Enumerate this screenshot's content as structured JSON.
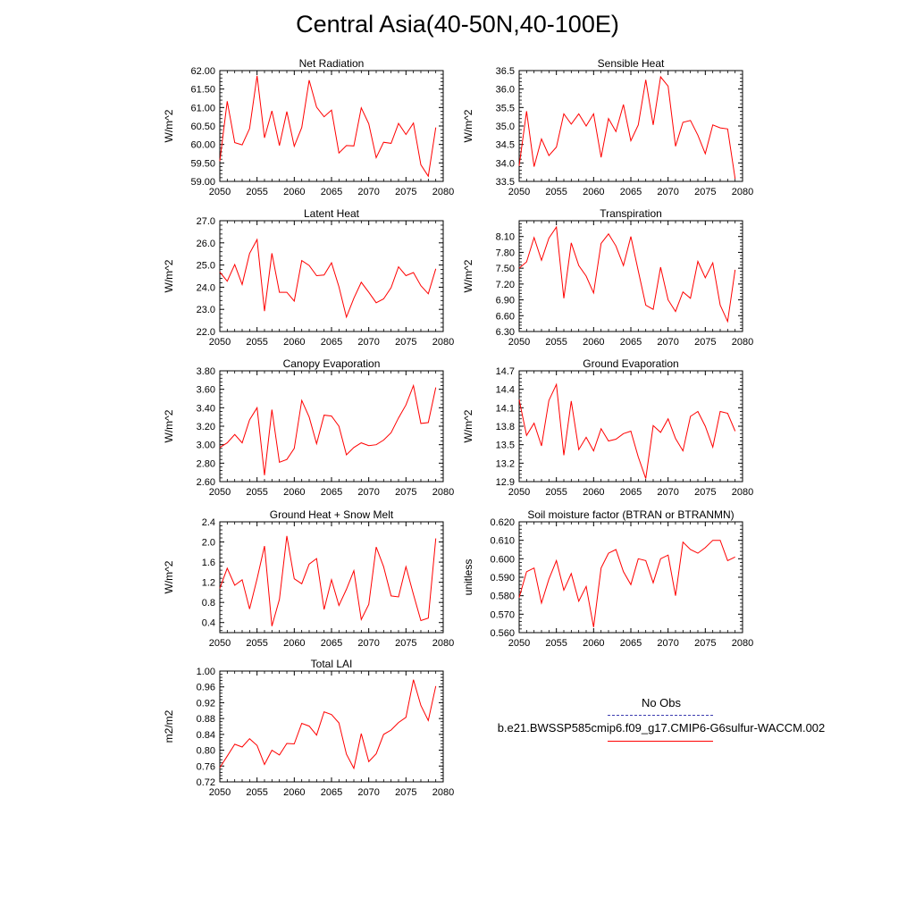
{
  "title": "Central Asia(40-50N,40-100E)",
  "legend": {
    "obs_label": "No Obs",
    "obs_color": "#3b3bb0",
    "model_label": "b.e21.BWSSP585cmip6.f09_g17.CMIP6-G6sulfur-WACCM.002",
    "model_color": "#ff0000"
  },
  "chart_data": [
    {
      "type": "line",
      "title": "Net Radiation",
      "ylabel": "W/m^2",
      "xlim": [
        2050,
        2080
      ],
      "ylim": [
        59.0,
        62.0
      ],
      "yticks": [
        "59.00",
        "59.50",
        "60.00",
        "60.50",
        "61.00",
        "61.50",
        "62.00"
      ],
      "xticks": [
        "2050",
        "2055",
        "2060",
        "2065",
        "2070",
        "2075",
        "2080"
      ],
      "series": [
        {
          "color": "#ff0000",
          "x": [
            2050,
            2051,
            2052,
            2053,
            2054,
            2055,
            2056,
            2057,
            2058,
            2059,
            2060,
            2061,
            2062,
            2063,
            2064,
            2065,
            2066,
            2067,
            2068,
            2069,
            2070,
            2071,
            2072,
            2073,
            2074,
            2075,
            2076,
            2077,
            2078,
            2079
          ],
          "values": [
            59.55,
            61.17,
            60.05,
            59.99,
            60.43,
            61.86,
            60.18,
            60.91,
            59.97,
            60.89,
            59.95,
            60.46,
            61.74,
            61.01,
            60.75,
            60.93,
            59.77,
            59.97,
            59.96,
            60.99,
            60.56,
            59.64,
            60.06,
            60.03,
            60.57,
            60.27,
            60.58,
            59.45,
            59.14,
            60.46
          ]
        }
      ]
    },
    {
      "type": "line",
      "title": "Sensible Heat",
      "ylabel": "W/m^2",
      "xlim": [
        2050,
        2080
      ],
      "ylim": [
        33.5,
        36.5
      ],
      "yticks": [
        "33.5",
        "34.0",
        "34.5",
        "35.0",
        "35.5",
        "36.0",
        "36.5"
      ],
      "xticks": [
        "2050",
        "2055",
        "2060",
        "2065",
        "2070",
        "2075",
        "2080"
      ],
      "series": [
        {
          "color": "#ff0000",
          "x": [
            2050,
            2051,
            2052,
            2053,
            2054,
            2055,
            2056,
            2057,
            2058,
            2059,
            2060,
            2061,
            2062,
            2063,
            2064,
            2065,
            2066,
            2067,
            2068,
            2069,
            2070,
            2071,
            2072,
            2073,
            2074,
            2075,
            2076,
            2077,
            2078,
            2079
          ],
          "values": [
            33.92,
            35.4,
            33.9,
            34.65,
            34.2,
            34.43,
            35.33,
            35.05,
            35.33,
            35.0,
            35.33,
            34.15,
            35.2,
            34.85,
            35.58,
            34.6,
            35.03,
            36.25,
            35.03,
            36.33,
            36.08,
            34.45,
            35.1,
            35.15,
            34.75,
            34.25,
            35.03,
            34.95,
            34.92,
            33.57
          ]
        }
      ]
    },
    {
      "type": "line",
      "title": "Latent Heat",
      "ylabel": "W/m^2",
      "xlim": [
        2050,
        2080
      ],
      "ylim": [
        22.0,
        27.0
      ],
      "yticks": [
        "22.0",
        "23.0",
        "24.0",
        "25.0",
        "26.0",
        "27.0"
      ],
      "xticks": [
        "2050",
        "2055",
        "2060",
        "2065",
        "2070",
        "2075",
        "2080"
      ],
      "series": [
        {
          "color": "#ff0000",
          "x": [
            2050,
            2051,
            2052,
            2053,
            2054,
            2055,
            2056,
            2057,
            2058,
            2059,
            2060,
            2061,
            2062,
            2063,
            2064,
            2065,
            2066,
            2067,
            2068,
            2069,
            2070,
            2071,
            2072,
            2073,
            2074,
            2075,
            2076,
            2077,
            2078,
            2079
          ],
          "values": [
            24.68,
            24.27,
            25.02,
            24.12,
            25.52,
            26.15,
            22.92,
            25.53,
            23.77,
            23.77,
            23.37,
            25.2,
            24.98,
            24.52,
            24.55,
            25.1,
            24.02,
            22.65,
            23.5,
            24.22,
            23.77,
            23.3,
            23.47,
            23.98,
            24.92,
            24.52,
            24.66,
            24.07,
            23.7,
            24.83
          ]
        }
      ]
    },
    {
      "type": "line",
      "title": "Transpiration",
      "ylabel": "W/m^2",
      "xlim": [
        2050,
        2080
      ],
      "ylim": [
        6.3,
        8.4
      ],
      "yticks": [
        "6.30",
        "6.60",
        "6.90",
        "7.20",
        "7.50",
        "7.80",
        "8.10"
      ],
      "xticks": [
        "2050",
        "2055",
        "2060",
        "2065",
        "2070",
        "2075",
        "2080"
      ],
      "series": [
        {
          "color": "#ff0000",
          "x": [
            2050,
            2051,
            2052,
            2053,
            2054,
            2055,
            2056,
            2057,
            2058,
            2059,
            2060,
            2061,
            2062,
            2063,
            2064,
            2065,
            2066,
            2067,
            2068,
            2069,
            2070,
            2071,
            2072,
            2073,
            2074,
            2075,
            2076,
            2077,
            2078,
            2079
          ],
          "values": [
            7.5,
            7.62,
            8.08,
            7.65,
            8.07,
            8.28,
            6.93,
            7.98,
            7.55,
            7.35,
            7.03,
            7.97,
            8.15,
            7.92,
            7.55,
            8.1,
            7.45,
            6.8,
            6.72,
            7.52,
            6.9,
            6.68,
            7.05,
            6.93,
            7.63,
            7.32,
            7.6,
            6.8,
            6.49,
            7.47
          ]
        }
      ]
    },
    {
      "type": "line",
      "title": "Canopy Evaporation",
      "ylabel": "W/m^2",
      "xlim": [
        2050,
        2080
      ],
      "ylim": [
        2.6,
        3.8
      ],
      "yticks": [
        "2.60",
        "2.80",
        "3.00",
        "3.20",
        "3.40",
        "3.60",
        "3.80"
      ],
      "xticks": [
        "2050",
        "2055",
        "2060",
        "2065",
        "2070",
        "2075",
        "2080"
      ],
      "series": [
        {
          "color": "#ff0000",
          "x": [
            2050,
            2051,
            2052,
            2053,
            2054,
            2055,
            2056,
            2057,
            2058,
            2059,
            2060,
            2061,
            2062,
            2063,
            2064,
            2065,
            2066,
            2067,
            2068,
            2069,
            2070,
            2071,
            2072,
            2073,
            2074,
            2075,
            2076,
            2077,
            2078,
            2079
          ],
          "values": [
            2.97,
            3.02,
            3.11,
            3.02,
            3.27,
            3.4,
            2.67,
            3.38,
            2.81,
            2.84,
            2.96,
            3.48,
            3.3,
            3.01,
            3.32,
            3.31,
            3.2,
            2.89,
            2.97,
            3.02,
            2.99,
            3.0,
            3.05,
            3.13,
            3.29,
            3.43,
            3.64,
            3.23,
            3.24,
            3.62
          ]
        }
      ]
    },
    {
      "type": "line",
      "title": "Ground Evaporation",
      "ylabel": "W/m^2",
      "xlim": [
        2050,
        2080
      ],
      "ylim": [
        12.9,
        14.7
      ],
      "yticks": [
        "12.9",
        "13.2",
        "13.5",
        "13.8",
        "14.1",
        "14.4",
        "14.7"
      ],
      "xticks": [
        "2050",
        "2055",
        "2060",
        "2065",
        "2070",
        "2075",
        "2080"
      ],
      "series": [
        {
          "color": "#ff0000",
          "x": [
            2050,
            2051,
            2052,
            2053,
            2054,
            2055,
            2056,
            2057,
            2058,
            2059,
            2060,
            2061,
            2062,
            2063,
            2064,
            2065,
            2066,
            2067,
            2068,
            2069,
            2070,
            2071,
            2072,
            2073,
            2074,
            2075,
            2076,
            2077,
            2078,
            2079
          ],
          "values": [
            14.23,
            13.65,
            13.85,
            13.48,
            14.22,
            14.48,
            13.33,
            14.21,
            13.42,
            13.62,
            13.4,
            13.76,
            13.56,
            13.59,
            13.68,
            13.72,
            13.3,
            12.95,
            13.81,
            13.7,
            13.92,
            13.6,
            13.4,
            13.96,
            14.04,
            13.8,
            13.46,
            14.04,
            14.01,
            13.72
          ]
        }
      ]
    },
    {
      "type": "line",
      "title": "Ground Heat + Snow Melt",
      "ylabel": "W/m^2",
      "xlim": [
        2050,
        2080
      ],
      "ylim": [
        0.2,
        2.4
      ],
      "yticks": [
        "0.4",
        "0.8",
        "1.2",
        "1.6",
        "2.0",
        "2.4"
      ],
      "xticks": [
        "2050",
        "2055",
        "2060",
        "2065",
        "2070",
        "2075",
        "2080"
      ],
      "series": [
        {
          "color": "#ff0000",
          "x": [
            2050,
            2051,
            2052,
            2053,
            2054,
            2055,
            2056,
            2057,
            2058,
            2059,
            2060,
            2061,
            2062,
            2063,
            2064,
            2065,
            2066,
            2067,
            2068,
            2069,
            2070,
            2071,
            2072,
            2073,
            2074,
            2075,
            2076,
            2077,
            2078,
            2079
          ],
          "values": [
            1.08,
            1.48,
            1.14,
            1.25,
            0.67,
            1.27,
            1.92,
            0.33,
            0.86,
            2.12,
            1.27,
            1.17,
            1.56,
            1.67,
            0.66,
            1.25,
            0.74,
            1.06,
            1.43,
            0.46,
            0.76,
            1.9,
            1.51,
            0.93,
            0.91,
            1.51,
            0.96,
            0.44,
            0.49,
            2.07
          ]
        }
      ]
    },
    {
      "type": "line",
      "title": "Soil moisture factor (BTRAN or BTRANMN)",
      "ylabel": "unitless",
      "xlim": [
        2050,
        2080
      ],
      "ylim": [
        0.56,
        0.62
      ],
      "yticks": [
        "0.560",
        "0.570",
        "0.580",
        "0.590",
        "0.600",
        "0.610",
        "0.620"
      ],
      "xticks": [
        "2050",
        "2055",
        "2060",
        "2065",
        "2070",
        "2075",
        "2080"
      ],
      "series": [
        {
          "color": "#ff0000",
          "x": [
            2050,
            2051,
            2052,
            2053,
            2054,
            2055,
            2056,
            2057,
            2058,
            2059,
            2060,
            2061,
            2062,
            2063,
            2064,
            2065,
            2066,
            2067,
            2068,
            2069,
            2070,
            2071,
            2072,
            2073,
            2074,
            2075,
            2076,
            2077,
            2078,
            2079
          ],
          "values": [
            0.579,
            0.593,
            0.595,
            0.576,
            0.589,
            0.599,
            0.583,
            0.592,
            0.577,
            0.585,
            0.563,
            0.595,
            0.603,
            0.605,
            0.593,
            0.586,
            0.6,
            0.599,
            0.587,
            0.6,
            0.602,
            0.58,
            0.609,
            0.605,
            0.603,
            0.606,
            0.61,
            0.61,
            0.599,
            0.601
          ]
        }
      ]
    },
    {
      "type": "line",
      "title": "Total LAI",
      "ylabel": "m2/m2",
      "xlim": [
        2050,
        2080
      ],
      "ylim": [
        0.72,
        1.0
      ],
      "yticks": [
        "0.72",
        "0.76",
        "0.80",
        "0.84",
        "0.88",
        "0.92",
        "0.96",
        "1.00"
      ],
      "xticks": [
        "2050",
        "2055",
        "2060",
        "2065",
        "2070",
        "2075",
        "2080"
      ],
      "series": [
        {
          "color": "#ff0000",
          "x": [
            2050,
            2051,
            2052,
            2053,
            2054,
            2055,
            2056,
            2057,
            2058,
            2059,
            2060,
            2061,
            2062,
            2063,
            2064,
            2065,
            2066,
            2067,
            2068,
            2069,
            2070,
            2071,
            2072,
            2073,
            2074,
            2075,
            2076,
            2077,
            2078,
            2079
          ],
          "values": [
            0.756,
            0.785,
            0.815,
            0.808,
            0.829,
            0.812,
            0.764,
            0.8,
            0.788,
            0.817,
            0.816,
            0.868,
            0.861,
            0.838,
            0.897,
            0.89,
            0.869,
            0.79,
            0.754,
            0.842,
            0.771,
            0.791,
            0.84,
            0.851,
            0.87,
            0.883,
            0.978,
            0.913,
            0.875,
            0.962
          ]
        }
      ]
    }
  ]
}
